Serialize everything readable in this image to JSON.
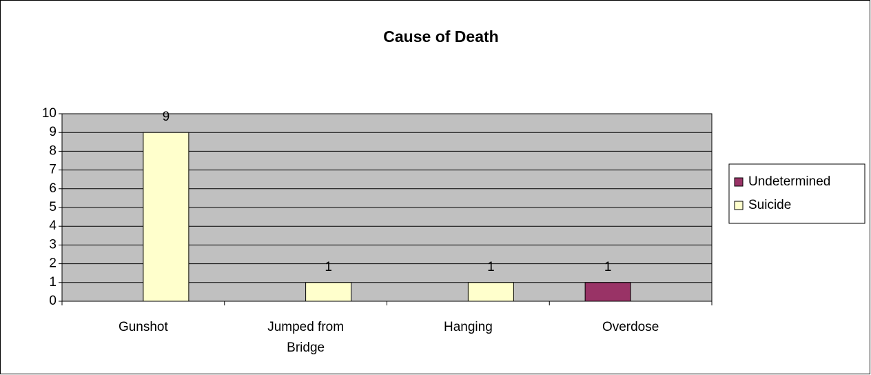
{
  "chart_data": {
    "type": "bar",
    "title": "Cause of Death",
    "categories": [
      "Gunshot",
      "Jumped from Bridge",
      "Hanging",
      "Overdose"
    ],
    "series": [
      {
        "name": "Undetermined",
        "color": "#993366",
        "values": [
          null,
          null,
          null,
          1
        ]
      },
      {
        "name": "Suicide",
        "color": "#ffffcc",
        "values": [
          9,
          1,
          1,
          null
        ]
      }
    ],
    "ylim": [
      0,
      10
    ],
    "yticks": [
      0,
      1,
      2,
      3,
      4,
      5,
      6,
      7,
      8,
      9,
      10
    ],
    "grid": true,
    "legend": "right",
    "plot_background": "#c0c0c0"
  }
}
